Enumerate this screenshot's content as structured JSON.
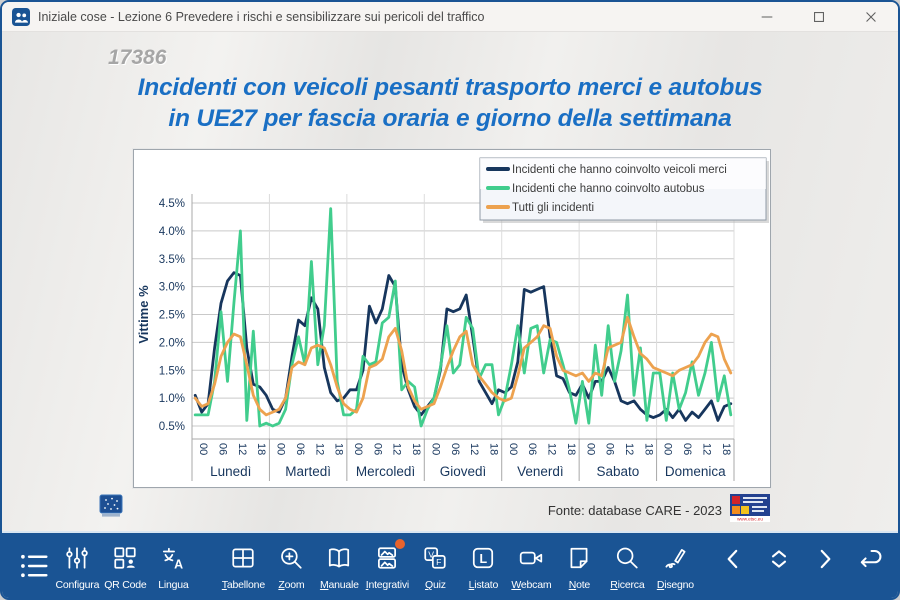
{
  "window": {
    "title": "Iniziale cose - Lezione 6 Prevedere i rischi e sensibilizzare sui pericoli del traffico",
    "app_icon": "people-icon",
    "controls": [
      {
        "id": "minimize",
        "icon": "minimize-icon"
      },
      {
        "id": "maximize",
        "icon": "maximize-icon"
      },
      {
        "id": "close",
        "icon": "close-icon"
      }
    ]
  },
  "slide": {
    "number": "17386",
    "title_line1": "Incidenti con veicoli pesanti trasporto merci e autobus",
    "title_line2": "in UE27 per fascia oraria e giorno della settimana",
    "source": "Fonte: database CARE - 2023",
    "source_logo": "etsc-logo",
    "corner_logo": "eu-mini-logo"
  },
  "colors": {
    "toolbar_bg": "#1a5494",
    "title_blue": "#1a6fc4",
    "axis_text": "#17365d",
    "badge": "#e8632c"
  },
  "chart_data": {
    "type": "line",
    "title": "",
    "ylabel": "Vittime %",
    "yticks": [
      "0.5%",
      "1.0%",
      "1.5%",
      "2.0%",
      "2.5%",
      "3.0%",
      "3.5%",
      "4.0%",
      "4.5%"
    ],
    "ylim": [
      0.5,
      4.5
    ],
    "grid": true,
    "legend_position": "top-right",
    "days": [
      "Lunedì",
      "Martedì",
      "Mercoledì",
      "Giovedì",
      "Venerdì",
      "Sabato",
      "Domenica"
    ],
    "hour_ticks": [
      "00",
      "06",
      "12",
      "18"
    ],
    "x_note": "one point every 2 hours per day, hours 00-22, 7 days = 84 points",
    "series": [
      {
        "name": "Incidenti che hanno coinvolto veicoli merci",
        "color": "#17365d",
        "values": [
          1.05,
          0.75,
          0.9,
          1.9,
          2.7,
          3.1,
          3.25,
          3.2,
          1.9,
          1.25,
          1.2,
          1.05,
          0.8,
          0.75,
          1.0,
          1.75,
          2.4,
          2.3,
          2.8,
          2.6,
          1.55,
          1.1,
          0.95,
          1.0,
          1.15,
          1.15,
          1.5,
          2.65,
          2.35,
          2.6,
          3.2,
          3.0,
          1.6,
          1.15,
          0.85,
          0.7,
          0.85,
          1.0,
          1.5,
          2.6,
          2.55,
          2.6,
          2.85,
          2.1,
          1.3,
          1.1,
          0.9,
          1.15,
          1.1,
          1.2,
          1.65,
          2.95,
          2.9,
          2.95,
          3.0,
          2.1,
          1.4,
          1.35,
          1.1,
          1.05,
          1.25,
          1.0,
          1.3,
          1.3,
          1.55,
          1.3,
          0.95,
          0.9,
          0.95,
          0.8,
          0.7,
          0.65,
          0.7,
          0.8,
          0.65,
          0.8,
          0.6,
          0.75,
          0.65,
          0.8,
          0.95,
          0.6,
          0.85,
          0.9
        ]
      },
      {
        "name": "Incidenti che hanno coinvolto autobus",
        "color": "#41cd8d",
        "values": [
          0.7,
          0.7,
          0.7,
          1.3,
          2.55,
          1.3,
          2.7,
          4.0,
          0.6,
          2.2,
          0.5,
          0.55,
          0.5,
          0.55,
          0.8,
          1.6,
          2.1,
          1.6,
          3.45,
          1.6,
          2.3,
          4.4,
          1.3,
          0.7,
          0.7,
          0.8,
          1.75,
          1.6,
          1.65,
          2.35,
          2.45,
          3.1,
          1.15,
          1.3,
          1.2,
          0.5,
          0.8,
          1.0,
          1.55,
          2.3,
          1.45,
          1.6,
          2.45,
          2.25,
          1.35,
          1.6,
          1.6,
          0.7,
          1.0,
          1.6,
          2.3,
          1.45,
          2.25,
          2.3,
          1.45,
          2.05,
          2.0,
          1.6,
          1.15,
          0.55,
          1.3,
          0.55,
          1.95,
          1.05,
          2.3,
          1.3,
          1.85,
          2.85,
          1.05,
          1.9,
          0.6,
          1.45,
          1.45,
          0.6,
          1.45,
          0.8,
          1.1,
          1.65,
          1.05,
          1.45,
          2.0,
          0.95,
          1.4,
          0.7
        ]
      },
      {
        "name": "Tutti gli incidenti",
        "color": "#eda24f",
        "values": [
          1.0,
          0.85,
          0.9,
          1.25,
          1.75,
          2.0,
          2.15,
          2.1,
          1.6,
          1.05,
          0.8,
          0.7,
          0.75,
          0.8,
          1.0,
          1.55,
          1.65,
          1.6,
          1.9,
          1.95,
          1.9,
          1.6,
          1.2,
          0.9,
          0.8,
          0.75,
          1.0,
          1.55,
          1.6,
          1.7,
          2.1,
          2.25,
          1.85,
          1.2,
          0.95,
          0.8,
          0.85,
          0.9,
          1.2,
          1.55,
          1.85,
          2.1,
          2.2,
          1.6,
          1.4,
          1.25,
          1.1,
          1.0,
          0.95,
          1.0,
          1.4,
          1.9,
          2.0,
          2.1,
          2.3,
          2.25,
          1.75,
          1.5,
          1.45,
          1.4,
          1.45,
          1.3,
          1.45,
          1.4,
          1.9,
          1.95,
          2.0,
          2.45,
          2.1,
          1.8,
          1.7,
          1.55,
          1.5,
          1.45,
          1.4,
          1.5,
          1.55,
          1.6,
          1.75,
          2.0,
          2.15,
          2.1,
          1.7,
          1.45
        ]
      }
    ]
  },
  "toolbar": {
    "menu": {
      "id": "menu",
      "icon": "menu-list-icon"
    },
    "items": [
      {
        "id": "configura",
        "label": "Configura",
        "icon": "sliders-icon",
        "underline": false
      },
      {
        "id": "qrcode",
        "label": "QR Code",
        "icon": "qr-code-icon",
        "underline": false
      },
      {
        "id": "lingua",
        "label": "Lingua",
        "icon": "translate-icon",
        "underline": false
      },
      {
        "id": "tabellone",
        "label": "Tabellone",
        "icon": "grid-icon",
        "underline": true,
        "gap_before": true
      },
      {
        "id": "zoom",
        "label": "Zoom",
        "icon": "zoom-in-icon",
        "underline": true
      },
      {
        "id": "manuale",
        "label": "Manuale",
        "icon": "book-icon",
        "underline": true
      },
      {
        "id": "integrativi",
        "label": "Integrativi",
        "icon": "images-icon",
        "underline": true,
        "badge": true
      },
      {
        "id": "quiz",
        "label": "Quiz",
        "icon": "true-false-icon",
        "underline": true
      },
      {
        "id": "listato",
        "label": "Listato",
        "icon": "list-l-icon",
        "underline": true
      },
      {
        "id": "webcam",
        "label": "Webcam",
        "icon": "webcam-icon",
        "underline": true
      },
      {
        "id": "note",
        "label": "Note",
        "icon": "note-icon",
        "underline": true
      },
      {
        "id": "ricerca",
        "label": "Ricerca",
        "icon": "search-icon",
        "underline": true
      },
      {
        "id": "disegno",
        "label": "Disegno",
        "icon": "pen-icon",
        "underline": true
      }
    ],
    "nav": [
      {
        "id": "prev",
        "icon": "chevron-left-icon"
      },
      {
        "id": "updown",
        "icon": "chevrons-up-down-icon"
      },
      {
        "id": "next",
        "icon": "chevron-right-icon"
      },
      {
        "id": "return",
        "icon": "return-arrow-icon"
      }
    ]
  }
}
